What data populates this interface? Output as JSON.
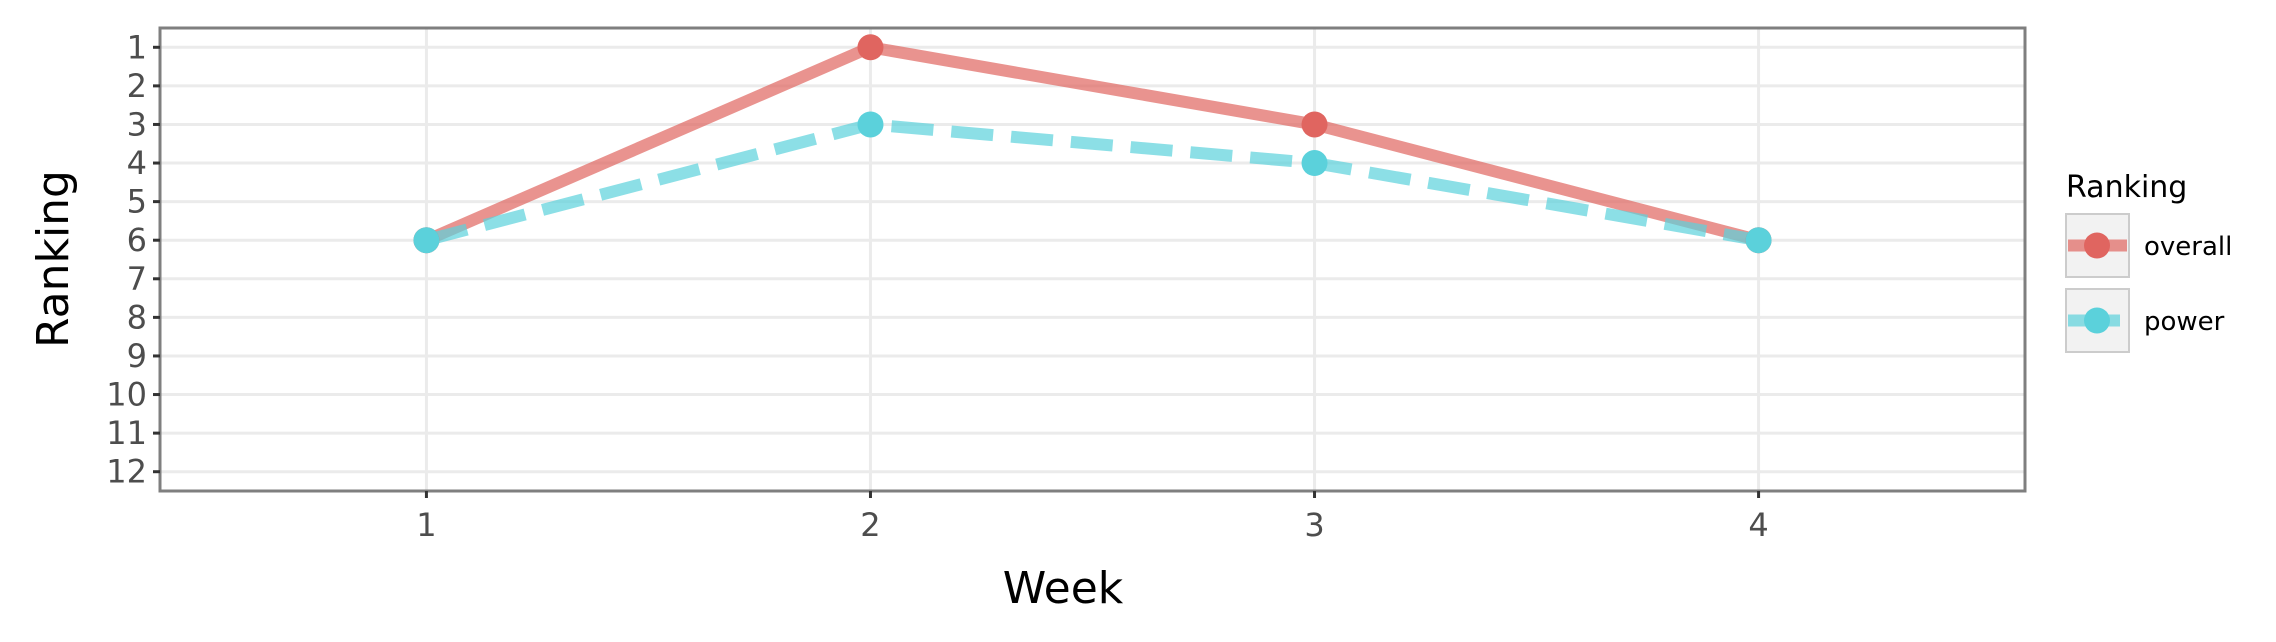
{
  "chart_data": {
    "type": "line",
    "title": "",
    "xlabel": "Week",
    "ylabel": "Ranking",
    "x": [
      1,
      2,
      3,
      4
    ],
    "x_ticks": [
      "1",
      "2",
      "3",
      "4"
    ],
    "xlim": [
      0.4,
      4.6
    ],
    "y_ticks": [
      "1",
      "2",
      "3",
      "4",
      "5",
      "6",
      "7",
      "8",
      "9",
      "10",
      "11",
      "12"
    ],
    "ylim": [
      12.5,
      0.5
    ],
    "y_reversed": true,
    "grid": true,
    "legend": {
      "title": "Ranking",
      "placement": "right"
    },
    "series": [
      {
        "name": "overall",
        "values": [
          6,
          1,
          3,
          6
        ],
        "color": "#E06560",
        "line_style": "solid"
      },
      {
        "name": "power",
        "values": [
          6,
          3,
          4,
          6
        ],
        "color": "#5BD1DB",
        "line_style": "dashed"
      }
    ]
  }
}
